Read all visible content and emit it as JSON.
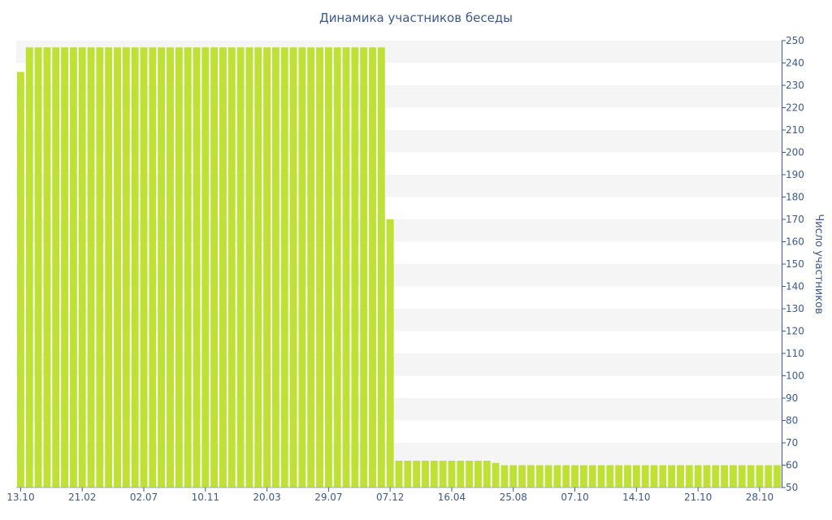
{
  "chart_data": {
    "type": "bar",
    "title": "Динамика участников беседы",
    "xlabel": "",
    "ylabel": "Число участников",
    "ylim": [
      50,
      250
    ],
    "y_ticks": [
      50,
      60,
      70,
      80,
      90,
      100,
      110,
      120,
      130,
      140,
      150,
      160,
      170,
      180,
      190,
      200,
      210,
      220,
      230,
      240,
      250
    ],
    "y_axis_position": "right",
    "grid": "horizontal bands",
    "legend": "none",
    "x_tick_labels": [
      "13.10",
      "21.02",
      "02.07",
      "10.11",
      "20.03",
      "29.07",
      "07.12",
      "16.04",
      "25.08",
      "07.10",
      "14.10",
      "21.10",
      "28.10"
    ],
    "x_tick_positions": [
      0,
      7,
      14,
      21,
      28,
      35,
      42,
      49,
      56,
      63,
      70,
      77,
      84
    ],
    "series": [
      {
        "values": [
          236,
          247,
          247,
          247,
          247,
          247,
          247,
          247,
          247,
          247,
          247,
          247,
          247,
          247,
          247,
          247,
          247,
          247,
          247,
          247,
          247,
          247,
          247,
          247,
          247,
          247,
          247,
          247,
          247,
          247,
          247,
          247,
          247,
          247,
          247,
          247,
          247,
          247,
          247,
          247,
          247,
          247,
          170,
          62,
          62,
          62,
          62,
          62,
          62,
          62,
          62,
          62,
          62,
          62,
          61,
          60,
          60,
          60,
          60,
          60,
          60,
          60,
          60,
          60,
          60,
          60,
          60,
          60,
          60,
          60,
          60,
          60,
          60,
          60,
          60,
          60,
          60,
          60,
          60,
          60,
          60,
          60,
          60,
          60,
          60,
          60,
          60
        ]
      }
    ],
    "bar_color": "#bfe035",
    "band_color": "#f5f5f5",
    "axis_text_color": "#3d5a8a"
  }
}
